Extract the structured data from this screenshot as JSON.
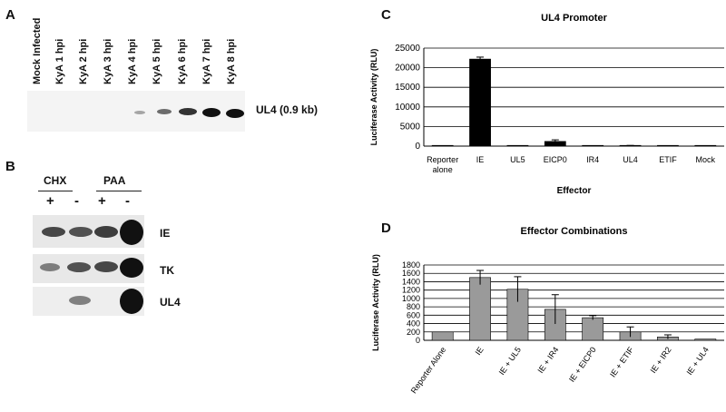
{
  "panels": {
    "a": {
      "letter": "A",
      "lanes": [
        "Mock Infected",
        "KyA 1 hpi",
        "KyA 2 hpi",
        "KyA 3 hpi",
        "KyA 4 hpi",
        "KyA 5 hpi",
        "KyA 6 hpi",
        "KyA 7 hpi",
        "KyA 8 hpi"
      ],
      "band_label": "UL4 (0.9 kb)"
    },
    "b": {
      "letter": "B",
      "groups": [
        "CHX",
        "PAA"
      ],
      "signs": [
        "+",
        "-",
        "+",
        "-"
      ],
      "row_labels": [
        "IE",
        "TK",
        "UL4"
      ]
    },
    "c": {
      "letter": "C"
    },
    "d": {
      "letter": "D"
    }
  },
  "chart_data": [
    {
      "type": "bar",
      "title": "UL4 Promoter",
      "xlabel": "Effector",
      "ylabel": "Luciferase Activity (RLU)",
      "categories": [
        "Reporter alone",
        "IE",
        "UL5",
        "EICP0",
        "IR4",
        "UL4",
        "ETIF",
        "Mock"
      ],
      "values": [
        150,
        22200,
        0,
        1200,
        0,
        80,
        0,
        0
      ],
      "errors": [
        0,
        500,
        0,
        400,
        0,
        100,
        0,
        0
      ],
      "ylim": [
        0,
        25000
      ],
      "yticks": [
        "0",
        "5000",
        "10000",
        "15000",
        "20000",
        "25000"
      ],
      "grid": true,
      "bar_color": "#000000"
    },
    {
      "type": "bar",
      "title": "Effector Combinations",
      "xlabel": "",
      "ylabel": "Luciferase Activity (RLU)",
      "categories": [
        "Reporter Alone",
        "IE",
        "IE + UL5",
        "IE + IR4",
        "IE + EICP0",
        "IE + ETIF",
        "IE + IR2",
        "IE + UL4"
      ],
      "values": [
        200,
        1500,
        1220,
        740,
        540,
        200,
        80,
        30
      ],
      "errors": [
        0,
        170,
        300,
        350,
        50,
        120,
        50,
        0
      ],
      "ylim": [
        0,
        1800
      ],
      "yticks": [
        "0",
        "200",
        "400",
        "600",
        "800",
        "1000",
        "1200",
        "1400",
        "1600",
        "1800"
      ],
      "grid": true,
      "bar_color": "#9a9a9a"
    }
  ]
}
